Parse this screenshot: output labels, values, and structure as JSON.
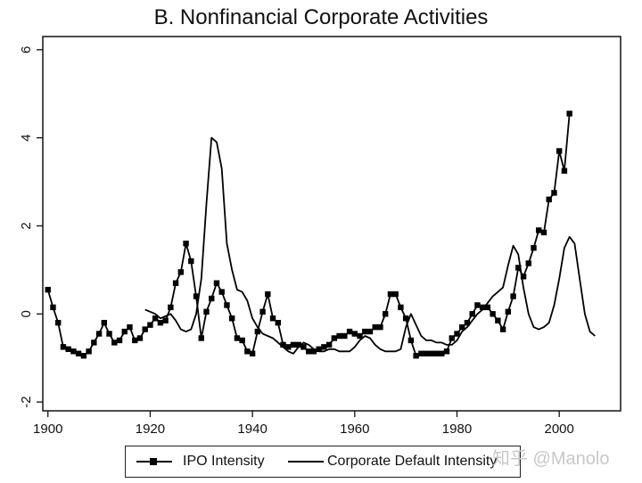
{
  "chart_data": {
    "type": "line",
    "title": "B. Nonfinancial Corporate Activities",
    "xlabel": "",
    "ylabel": "",
    "xlim": [
      1899,
      2012
    ],
    "ylim": [
      -2.2,
      6.3
    ],
    "xticks": [
      1900,
      1920,
      1940,
      1960,
      1980,
      2000
    ],
    "yticks": [
      -2,
      0,
      2,
      4,
      6
    ],
    "grid": false,
    "legend": "bottom",
    "series": [
      {
        "name": "IPO Intensity",
        "marker": "square",
        "color": "#000000",
        "x": [
          1900,
          1901,
          1902,
          1903,
          1904,
          1905,
          1906,
          1907,
          1908,
          1909,
          1910,
          1911,
          1912,
          1913,
          1914,
          1915,
          1916,
          1917,
          1918,
          1919,
          1920,
          1921,
          1922,
          1923,
          1924,
          1925,
          1926,
          1927,
          1928,
          1929,
          1930,
          1931,
          1932,
          1933,
          1934,
          1935,
          1936,
          1937,
          1938,
          1939,
          1940,
          1941,
          1942,
          1943,
          1944,
          1945,
          1946,
          1947,
          1948,
          1949,
          1950,
          1951,
          1952,
          1953,
          1954,
          1955,
          1956,
          1957,
          1958,
          1959,
          1960,
          1961,
          1962,
          1963,
          1964,
          1965,
          1966,
          1967,
          1968,
          1969,
          1970,
          1971,
          1972,
          1973,
          1974,
          1975,
          1976,
          1977,
          1978,
          1979,
          1980,
          1981,
          1982,
          1983,
          1984,
          1985,
          1986,
          1987,
          1988,
          1989,
          1990,
          1991,
          1992,
          1993,
          1994,
          1995,
          1996,
          1997,
          1998,
          1999,
          2000,
          2001,
          2002
        ],
        "y": [
          0.55,
          0.15,
          -0.2,
          -0.75,
          -0.8,
          -0.85,
          -0.9,
          -0.95,
          -0.85,
          -0.65,
          -0.45,
          -0.2,
          -0.45,
          -0.65,
          -0.6,
          -0.4,
          -0.3,
          -0.6,
          -0.55,
          -0.35,
          -0.25,
          -0.1,
          -0.2,
          -0.15,
          0.15,
          0.7,
          0.95,
          1.6,
          1.2,
          0.4,
          -0.55,
          0.05,
          0.35,
          0.7,
          0.5,
          0.2,
          -0.1,
          -0.55,
          -0.6,
          -0.85,
          -0.9,
          -0.4,
          0.05,
          0.45,
          -0.1,
          -0.2,
          -0.7,
          -0.75,
          -0.7,
          -0.7,
          -0.75,
          -0.85,
          -0.85,
          -0.8,
          -0.75,
          -0.7,
          -0.55,
          -0.5,
          -0.5,
          -0.4,
          -0.45,
          -0.5,
          -0.4,
          -0.4,
          -0.3,
          -0.3,
          0.0,
          0.45,
          0.45,
          0.15,
          -0.1,
          -0.6,
          -0.95,
          -0.9,
          -0.9,
          -0.9,
          -0.9,
          -0.9,
          -0.85,
          -0.55,
          -0.45,
          -0.3,
          -0.2,
          0.0,
          0.2,
          0.15,
          0.15,
          0.0,
          -0.15,
          -0.35,
          0.05,
          0.4,
          1.05,
          0.85,
          1.15,
          1.5,
          1.9,
          1.85,
          2.6,
          2.75,
          3.7,
          3.25,
          4.55
        ]
      },
      {
        "name": "Corporate Default Intensity",
        "marker": "none",
        "color": "#000000",
        "x": [
          1919,
          1920,
          1921,
          1922,
          1923,
          1924,
          1925,
          1926,
          1927,
          1928,
          1929,
          1930,
          1931,
          1932,
          1933,
          1934,
          1935,
          1936,
          1937,
          1938,
          1939,
          1940,
          1941,
          1942,
          1943,
          1944,
          1945,
          1946,
          1947,
          1948,
          1949,
          1950,
          1951,
          1952,
          1953,
          1954,
          1955,
          1956,
          1957,
          1958,
          1959,
          1960,
          1961,
          1962,
          1963,
          1964,
          1965,
          1966,
          1967,
          1968,
          1969,
          1970,
          1971,
          1972,
          1973,
          1974,
          1975,
          1976,
          1977,
          1978,
          1979,
          1980,
          1981,
          1982,
          1983,
          1984,
          1985,
          1986,
          1987,
          1988,
          1989,
          1990,
          1991,
          1992,
          1993,
          1994,
          1995,
          1996,
          1997,
          1998,
          1999,
          2000,
          2001,
          2002,
          2003,
          2004,
          2005,
          2006,
          2007
        ],
        "y": [
          0.1,
          0.05,
          0.0,
          -0.1,
          -0.05,
          0.0,
          -0.15,
          -0.35,
          -0.4,
          -0.35,
          0.0,
          0.8,
          2.5,
          4.0,
          3.9,
          3.3,
          1.6,
          1.0,
          0.55,
          0.5,
          0.3,
          -0.1,
          -0.3,
          -0.45,
          -0.5,
          -0.55,
          -0.65,
          -0.75,
          -0.85,
          -0.9,
          -0.75,
          -0.65,
          -0.7,
          -0.8,
          -0.85,
          -0.85,
          -0.8,
          -0.8,
          -0.85,
          -0.85,
          -0.85,
          -0.75,
          -0.6,
          -0.5,
          -0.55,
          -0.7,
          -0.8,
          -0.85,
          -0.85,
          -0.85,
          -0.8,
          -0.3,
          0.0,
          -0.25,
          -0.5,
          -0.6,
          -0.6,
          -0.65,
          -0.65,
          -0.7,
          -0.7,
          -0.6,
          -0.4,
          -0.3,
          -0.15,
          0.0,
          0.1,
          0.25,
          0.4,
          0.5,
          0.6,
          1.1,
          1.55,
          1.35,
          0.6,
          0.0,
          -0.3,
          -0.35,
          -0.3,
          -0.2,
          0.2,
          0.8,
          1.5,
          1.75,
          1.6,
          0.8,
          0.0,
          -0.4,
          -0.5
        ]
      }
    ]
  },
  "watermark": "知乎 @Manolo"
}
